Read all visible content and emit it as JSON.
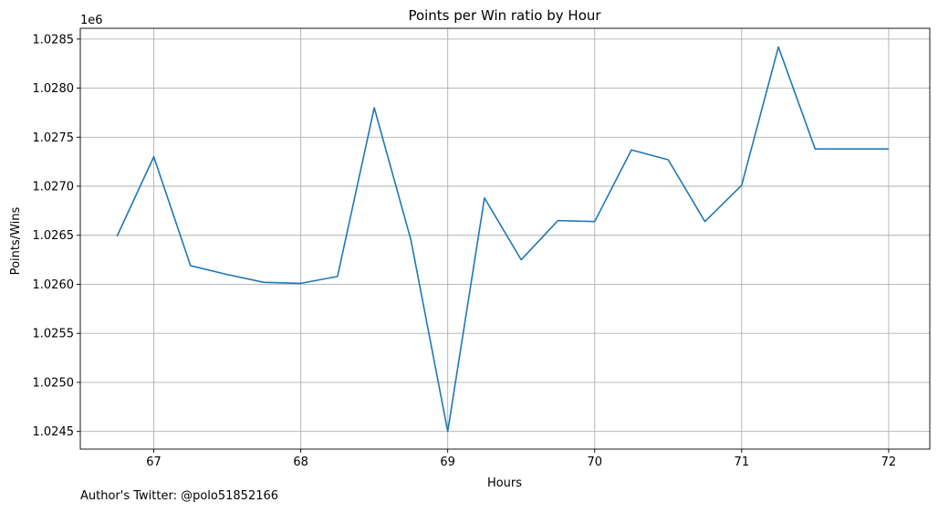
{
  "chart_data": {
    "type": "line",
    "title": "Points per Win ratio by Hour",
    "xlabel": "Hours",
    "ylabel": "Points/Wins",
    "y_offset_label": "1e6",
    "xlim": [
      66.5,
      72.28
    ],
    "ylim": [
      1.02432,
      1.02861
    ],
    "x_ticks": [
      67,
      68,
      69,
      70,
      71,
      72
    ],
    "x_tick_labels": [
      "67",
      "68",
      "69",
      "70",
      "71",
      "72"
    ],
    "y_ticks": [
      1.0245,
      1.025,
      1.0255,
      1.026,
      1.0265,
      1.027,
      1.0275,
      1.028,
      1.0285
    ],
    "y_tick_labels": [
      "1.0245",
      "1.0250",
      "1.0255",
      "1.0260",
      "1.0265",
      "1.0270",
      "1.0275",
      "1.0280",
      "1.0285"
    ],
    "grid": true,
    "series": [
      {
        "color": "#1f77b4",
        "x": [
          66.75,
          67.0,
          67.25,
          67.5,
          67.75,
          68.0,
          68.25,
          68.5,
          68.75,
          69.0,
          69.25,
          69.5,
          69.75,
          70.0,
          70.25,
          70.5,
          70.75,
          71.0,
          71.25,
          71.5,
          71.75,
          72.0
        ],
        "y": [
          1.02649,
          1.0273,
          1.02619,
          1.0261,
          1.02602,
          1.02601,
          1.02608,
          1.0278,
          1.02645,
          1.0245,
          1.02688,
          1.02625,
          1.02665,
          1.02664,
          1.02737,
          1.02727,
          1.02664,
          1.02701,
          1.02842,
          1.02738,
          1.02738,
          1.02738
        ]
      }
    ]
  },
  "footer": {
    "note": "Author's Twitter: @polo51852166"
  }
}
